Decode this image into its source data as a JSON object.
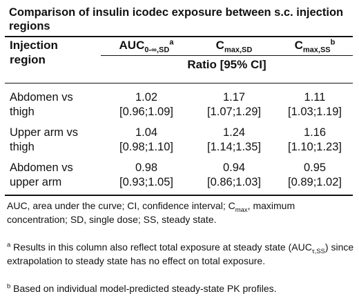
{
  "title": "Comparison of insulin icodec exposure between s.c. injection regions",
  "columns": {
    "region_line1": "Injection",
    "region_line2": "region",
    "auc": {
      "main": "AUC",
      "sub": "0-∞,SD",
      "sup": "a"
    },
    "cmax_sd": {
      "main": "C",
      "sub": "max,SD"
    },
    "cmax_ss": {
      "main": "C",
      "sub": "max,SS",
      "sup": "b"
    },
    "ratio_label": "Ratio [95% CI]"
  },
  "rows": [
    {
      "region1": "Abdomen vs",
      "region2": "thigh",
      "auc": "1.02",
      "auc_ci": "[0.96;1.09]",
      "cmax_sd": "1.17",
      "cmax_sd_ci": "[1.07;1.29]",
      "cmax_ss": "1.11",
      "cmax_ss_ci": "[1.03;1.19]"
    },
    {
      "region1": "Upper arm vs",
      "region2": "thigh",
      "auc": "1.04",
      "auc_ci": "[0.98;1.10]",
      "cmax_sd": "1.24",
      "cmax_sd_ci": "[1.14;1.35]",
      "cmax_ss": "1.16",
      "cmax_ss_ci": "[1.10;1.23]"
    },
    {
      "region1": "Abdomen vs",
      "region2": "upper arm",
      "auc": "0.98",
      "auc_ci": "[0.93;1.05]",
      "cmax_sd": "0.94",
      "cmax_sd_ci": "[0.86;1.03]",
      "cmax_ss": "0.95",
      "cmax_ss_ci": "[0.89;1.02]"
    }
  ],
  "footnotes": {
    "abbrev_1": "AUC, area under the curve; CI, confidence interval; C",
    "abbrev_sub": "max",
    "abbrev_2": ", maximum concentration; SD, single dose; SS, steady state.",
    "a_mark": "a",
    "a_text_1": " Results in this column also reflect total exposure at steady state (AUC",
    "a_sub": "τ,SS",
    "a_text_2": ") since extrapolation to steady state has no effect on total exposure.",
    "b_mark": "b",
    "b_text": " Based on individual model-predicted steady-state PK profiles."
  }
}
